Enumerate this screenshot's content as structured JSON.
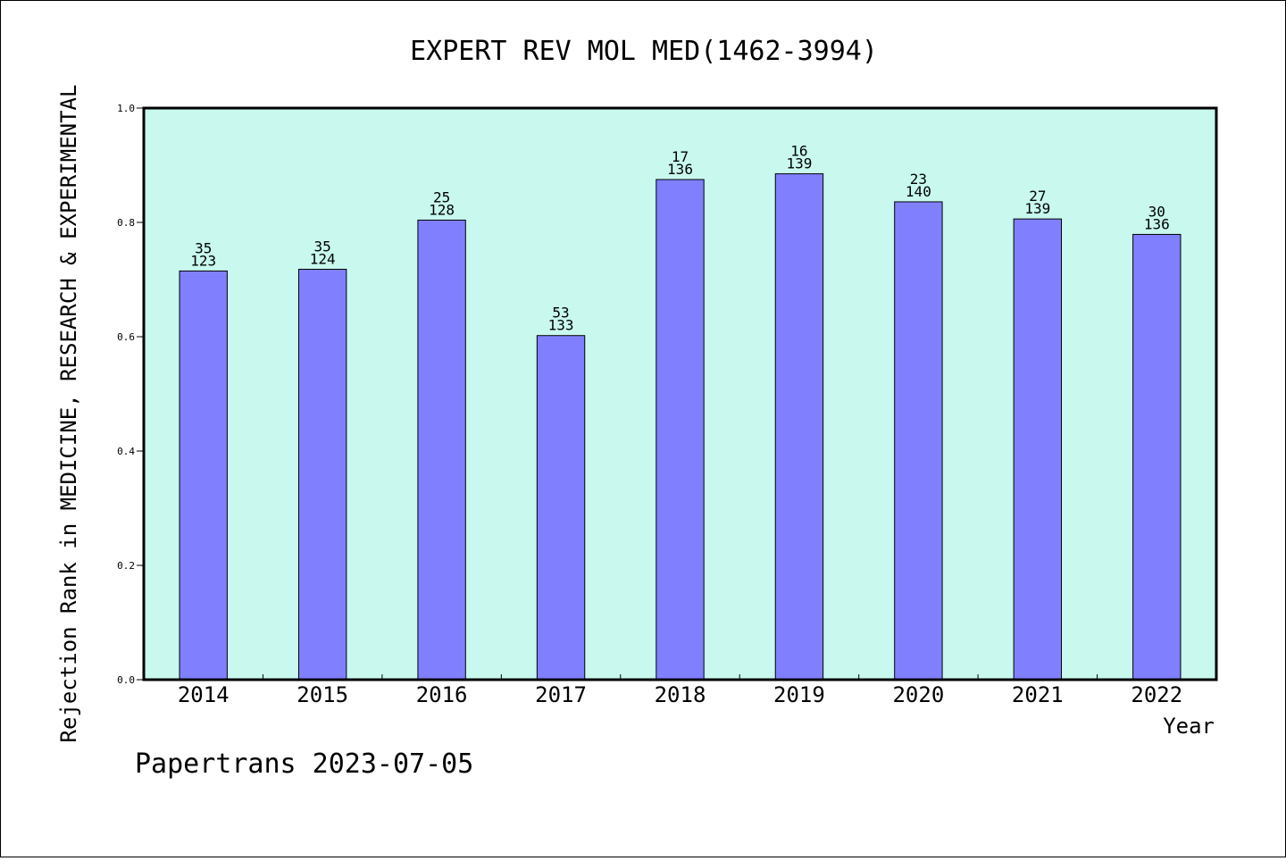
{
  "chart_data": {
    "type": "bar",
    "title": "EXPERT REV MOL MED(1462-3994)",
    "xlabel": "Year",
    "ylabel": "Rejection Rank in MEDICINE, RESEARCH & EXPERIMENTAL",
    "ylim": [
      0,
      1.0
    ],
    "yticks": [
      "0.0",
      "0.2",
      "0.4",
      "0.6",
      "0.8",
      "1.0"
    ],
    "categories": [
      "2014",
      "2015",
      "2016",
      "2017",
      "2018",
      "2019",
      "2020",
      "2021",
      "2022"
    ],
    "values": [
      0.715,
      0.718,
      0.804,
      0.602,
      0.875,
      0.885,
      0.836,
      0.806,
      0.779
    ],
    "rank": [
      "35",
      "35",
      "25",
      "53",
      "17",
      "16",
      "23",
      "27",
      "30"
    ],
    "total": [
      "123",
      "124",
      "128",
      "133",
      "136",
      "139",
      "140",
      "139",
      "136"
    ],
    "grid": false,
    "legend": "none",
    "colors": {
      "plot_bg": "#c8f8ee",
      "bar": "#8080ff",
      "axis": "#000000"
    }
  },
  "footer": "Papertrans 2023-07-05"
}
